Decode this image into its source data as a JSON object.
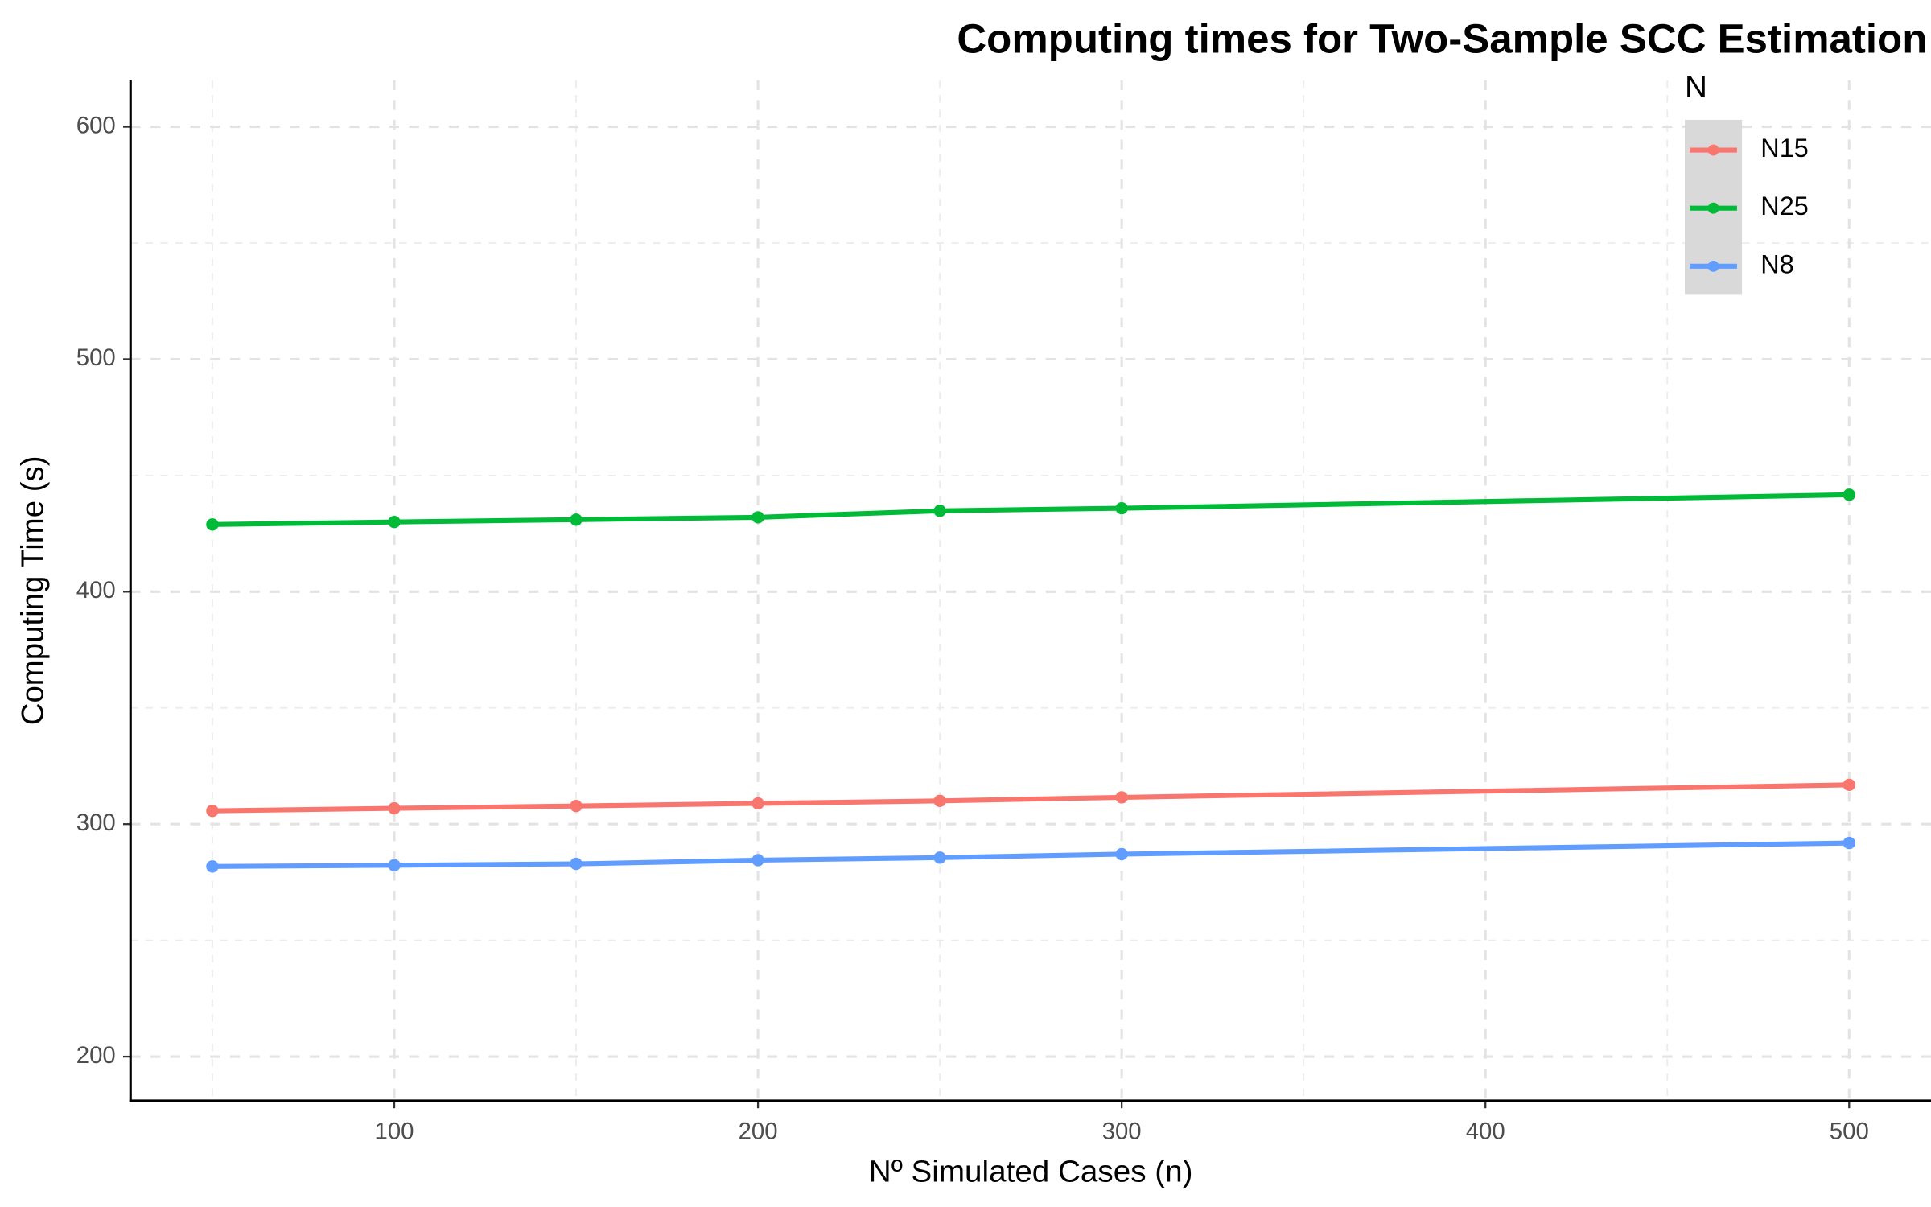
{
  "chart_data": {
    "type": "line",
    "title": "Computing times for Two-Sample SCC Estimation",
    "x_label": "Nº Simulated Cases (n)",
    "y_label": "Computing Time (s)",
    "legend_title": "N",
    "legend_position": "top-right",
    "x": [
      50,
      100,
      150,
      200,
      250,
      300,
      500
    ],
    "series": [
      {
        "name": "N15",
        "color": "#F8766D",
        "values": [
          305.7,
          306.8,
          307.8,
          308.9,
          310,
          311.5,
          316.9
        ]
      },
      {
        "name": "N25",
        "color": "#00BA38",
        "values": [
          428.9,
          430,
          431,
          432,
          434.8,
          435.9,
          441.7
        ]
      },
      {
        "name": "N8",
        "color": "#619CFF",
        "values": [
          281.8,
          282.3,
          282.9,
          284.5,
          285.6,
          287.1,
          291.9
        ]
      }
    ],
    "xlim": [
      27.5,
      522.5
    ],
    "ylim": [
      181,
      620
    ],
    "xticks": [
      100,
      200,
      300,
      400,
      500
    ],
    "yticks": [
      200,
      300,
      400,
      500,
      600
    ],
    "xminor": [
      50,
      150,
      250,
      350,
      450
    ],
    "yminor": [
      250,
      350,
      450,
      550
    ],
    "grid": true
  }
}
